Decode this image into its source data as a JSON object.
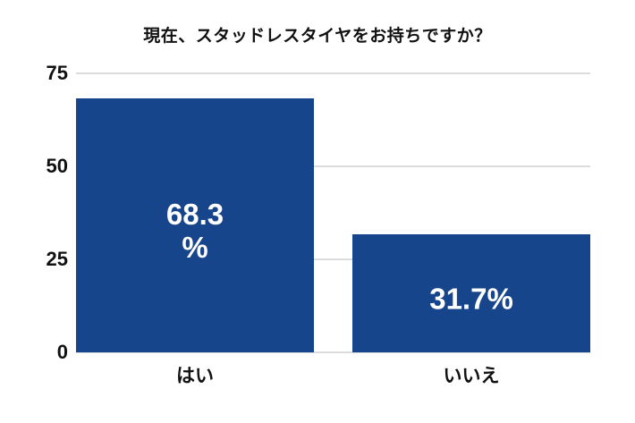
{
  "chart_data": {
    "type": "bar",
    "title": "現在、スタッドレスタイヤをお持ちですか？",
    "categories": [
      "はい",
      "いいえ"
    ],
    "values": [
      68.3,
      31.7
    ],
    "bars": [
      {
        "category": "はい",
        "value": 68.3,
        "label": "68.3%",
        "label_lines": [
          "68.3",
          "%"
        ]
      },
      {
        "category": "いいえ",
        "value": 31.7,
        "label": "31.7%",
        "label_lines": [
          "31.7%"
        ]
      }
    ],
    "xlabel": "",
    "ylabel": "",
    "yticks": [
      0,
      25,
      50,
      75
    ],
    "ylim": [
      0,
      75
    ],
    "grid": true,
    "legend": false,
    "colors": {
      "bar": "#16458B",
      "value_label": "#FFFFFF",
      "gridline": "#DCDCDC",
      "axis_text": "#111111",
      "title_text": "#111111",
      "background": "#FFFFFF"
    }
  }
}
